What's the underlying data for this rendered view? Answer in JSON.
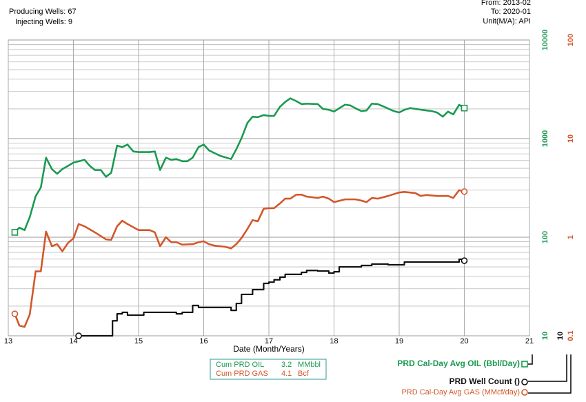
{
  "chart_data": {
    "type": "line",
    "annotations": [
      "Producing Wells: 67",
      "Injecting Wells: 9",
      "From: 2013-02",
      "To: 2020-01",
      "Unit(M/A): API"
    ],
    "x_label": "Date (Month/Years)",
    "xlim": [
      13,
      21
    ],
    "xticks": [
      13,
      14,
      15,
      16,
      17,
      18,
      19,
      20,
      21
    ],
    "ylim": [
      10,
      10000
    ],
    "yticks": [
      10,
      100,
      1000,
      10000
    ],
    "y2lim": [
      0.1,
      100
    ],
    "y2ticks": [
      0.1,
      1,
      10,
      100
    ],
    "y3lim": [
      10,
      10000
    ],
    "y3ticks": [
      10
    ],
    "log_scale": true,
    "grid": true,
    "summary": [
      {
        "label": "Cum PRD OIL",
        "value": 3.2,
        "unit": "MMbbl",
        "color": "#1a9a50"
      },
      {
        "label": "Cum PRD GAS",
        "value": 4.1,
        "unit": "Bcf",
        "color": "#d2572b"
      }
    ],
    "series": [
      {
        "name": "PRD Cal-Day Avg OIL (Bbl/Day)",
        "color": "#1a9a50",
        "axis": "y",
        "marker": "square",
        "step": false,
        "x": [
          13.1,
          13.17,
          13.25,
          13.33,
          13.42,
          13.5,
          13.58,
          13.67,
          13.75,
          13.83,
          13.92,
          14.0,
          14.17,
          14.25,
          14.33,
          14.42,
          14.5,
          14.58,
          14.67,
          14.75,
          14.83,
          14.92,
          15.0,
          15.17,
          15.25,
          15.33,
          15.42,
          15.5,
          15.58,
          15.67,
          15.75,
          15.83,
          15.92,
          16.0,
          16.08,
          16.17,
          16.25,
          16.42,
          16.5,
          16.58,
          16.67,
          16.75,
          16.83,
          16.92,
          17.0,
          17.08,
          17.17,
          17.25,
          17.33,
          17.42,
          17.5,
          17.58,
          17.75,
          17.83,
          17.92,
          18.0,
          18.08,
          18.17,
          18.25,
          18.33,
          18.42,
          18.5,
          18.58,
          18.67,
          18.75,
          18.92,
          19.0,
          19.08,
          19.17,
          19.25,
          19.42,
          19.5,
          19.58,
          19.67,
          19.75,
          19.83,
          19.92,
          20.0
        ],
        "values": [
          112,
          125,
          118,
          160,
          260,
          320,
          640,
          490,
          440,
          490,
          530,
          570,
          610,
          530,
          480,
          480,
          410,
          450,
          850,
          820,
          870,
          740,
          730,
          730,
          740,
          480,
          640,
          610,
          620,
          590,
          590,
          640,
          820,
          870,
          760,
          710,
          670,
          620,
          780,
          1010,
          1440,
          1670,
          1650,
          1730,
          1700,
          1700,
          2100,
          2350,
          2560,
          2400,
          2240,
          2260,
          2240,
          2000,
          1960,
          1880,
          2030,
          2210,
          2170,
          2030,
          1900,
          1930,
          2260,
          2240,
          2130,
          1900,
          1840,
          1960,
          2040,
          2000,
          1930,
          1900,
          1840,
          1670,
          1880,
          1760,
          2200,
          2040
        ]
      },
      {
        "name": "PRD Well Count ()",
        "color": "#111111",
        "axis": "y3",
        "marker": "circle",
        "step": true,
        "x": [
          14.08,
          14.6,
          14.67,
          14.75,
          14.83,
          15.08,
          15.58,
          15.67,
          15.83,
          15.92,
          16.42,
          16.5,
          16.58,
          16.75,
          16.92,
          17.0,
          17.08,
          17.17,
          17.25,
          17.5,
          17.58,
          17.75,
          17.92,
          18.0,
          18.08,
          18.42,
          18.58,
          18.83,
          19.08,
          19.92,
          20.0
        ],
        "values": [
          10,
          14.2,
          16.7,
          17.3,
          16.2,
          17.3,
          16.7,
          17.3,
          20.3,
          19.4,
          18.1,
          21.3,
          26.3,
          29.4,
          34,
          35,
          37,
          39.3,
          42,
          44,
          46,
          45.4,
          43.3,
          44.6,
          50,
          51.7,
          53.4,
          52.5,
          56,
          59.7,
          57.8
        ]
      },
      {
        "name": "PRD Cal-Day Avg GAS (MMcf/day)",
        "color": "#d2572b",
        "axis": "y2",
        "marker": "circle",
        "step": false,
        "x": [
          13.1,
          13.17,
          13.25,
          13.33,
          13.42,
          13.5,
          13.58,
          13.67,
          13.75,
          13.83,
          13.92,
          14.0,
          14.08,
          14.17,
          14.33,
          14.5,
          14.58,
          14.67,
          14.75,
          14.83,
          15.0,
          15.17,
          15.25,
          15.33,
          15.42,
          15.5,
          15.58,
          15.67,
          15.83,
          15.92,
          16.0,
          16.08,
          16.17,
          16.33,
          16.42,
          16.5,
          16.58,
          16.67,
          16.75,
          16.83,
          16.92,
          17.0,
          17.08,
          17.17,
          17.25,
          17.33,
          17.42,
          17.5,
          17.58,
          17.75,
          17.83,
          17.92,
          18.0,
          18.17,
          18.33,
          18.42,
          18.5,
          18.58,
          18.67,
          18.83,
          19.0,
          19.08,
          19.25,
          19.33,
          19.42,
          19.58,
          19.75,
          19.83,
          19.92,
          20.0
        ],
        "values": [
          0.167,
          0.127,
          0.123,
          0.165,
          0.45,
          0.45,
          1.14,
          0.81,
          0.85,
          0.72,
          0.88,
          0.97,
          1.36,
          1.29,
          1.12,
          0.95,
          0.94,
          1.29,
          1.47,
          1.36,
          1.18,
          1.18,
          1.12,
          0.81,
          1.0,
          0.89,
          0.89,
          0.84,
          0.85,
          0.89,
          0.91,
          0.85,
          0.82,
          0.8,
          0.77,
          0.85,
          0.98,
          1.21,
          1.49,
          1.45,
          1.94,
          1.97,
          1.97,
          2.2,
          2.46,
          2.46,
          2.7,
          2.7,
          2.58,
          2.5,
          2.58,
          2.46,
          2.27,
          2.42,
          2.42,
          2.35,
          2.27,
          2.5,
          2.46,
          2.62,
          2.84,
          2.88,
          2.8,
          2.62,
          2.68,
          2.62,
          2.62,
          2.5,
          3.0,
          2.9
        ]
      }
    ]
  }
}
